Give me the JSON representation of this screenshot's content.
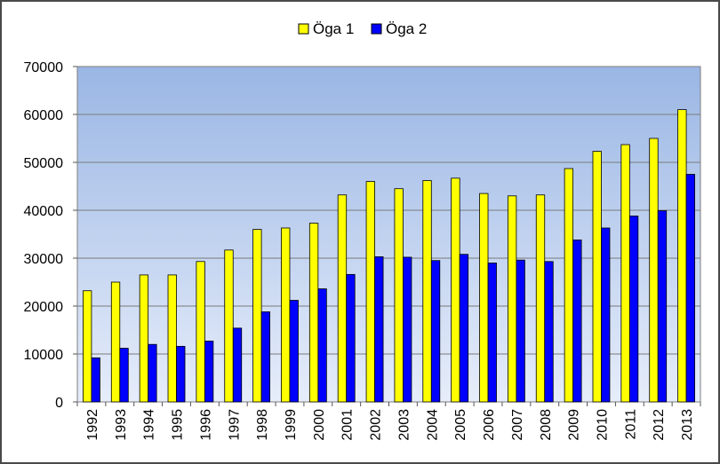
{
  "chart_data": {
    "type": "bar",
    "title": "",
    "xlabel": "",
    "ylabel": "",
    "categories": [
      "1992",
      "1993",
      "1994",
      "1995",
      "1996",
      "1997",
      "1998",
      "1999",
      "2000",
      "2001",
      "2002",
      "2003",
      "2004",
      "2005",
      "2006",
      "2007",
      "2008",
      "2009",
      "2010",
      "2011",
      "2012",
      "2013"
    ],
    "series": [
      {
        "name": "Öga 1",
        "color": "#ffff00",
        "values": [
          23200,
          25000,
          26500,
          26500,
          29300,
          31700,
          36000,
          36300,
          37300,
          43200,
          46000,
          44500,
          46200,
          46700,
          43500,
          43000,
          43200,
          48700,
          52300,
          53700,
          55000,
          61000
        ]
      },
      {
        "name": "Öga 2",
        "color": "#0000ff",
        "values": [
          9200,
          11200,
          12000,
          11600,
          12700,
          15400,
          18800,
          21200,
          23600,
          26600,
          30300,
          30200,
          29500,
          30800,
          29000,
          29600,
          29300,
          33800,
          36300,
          38800,
          39900,
          47500
        ]
      }
    ],
    "ylim": [
      0,
      70000
    ],
    "yticks": [
      0,
      10000,
      20000,
      30000,
      40000,
      50000,
      60000,
      70000
    ],
    "grid": true,
    "legend_position": "top-center",
    "plot_background": {
      "top": "#9ab6e4",
      "bottom": "#e6edfa"
    }
  }
}
